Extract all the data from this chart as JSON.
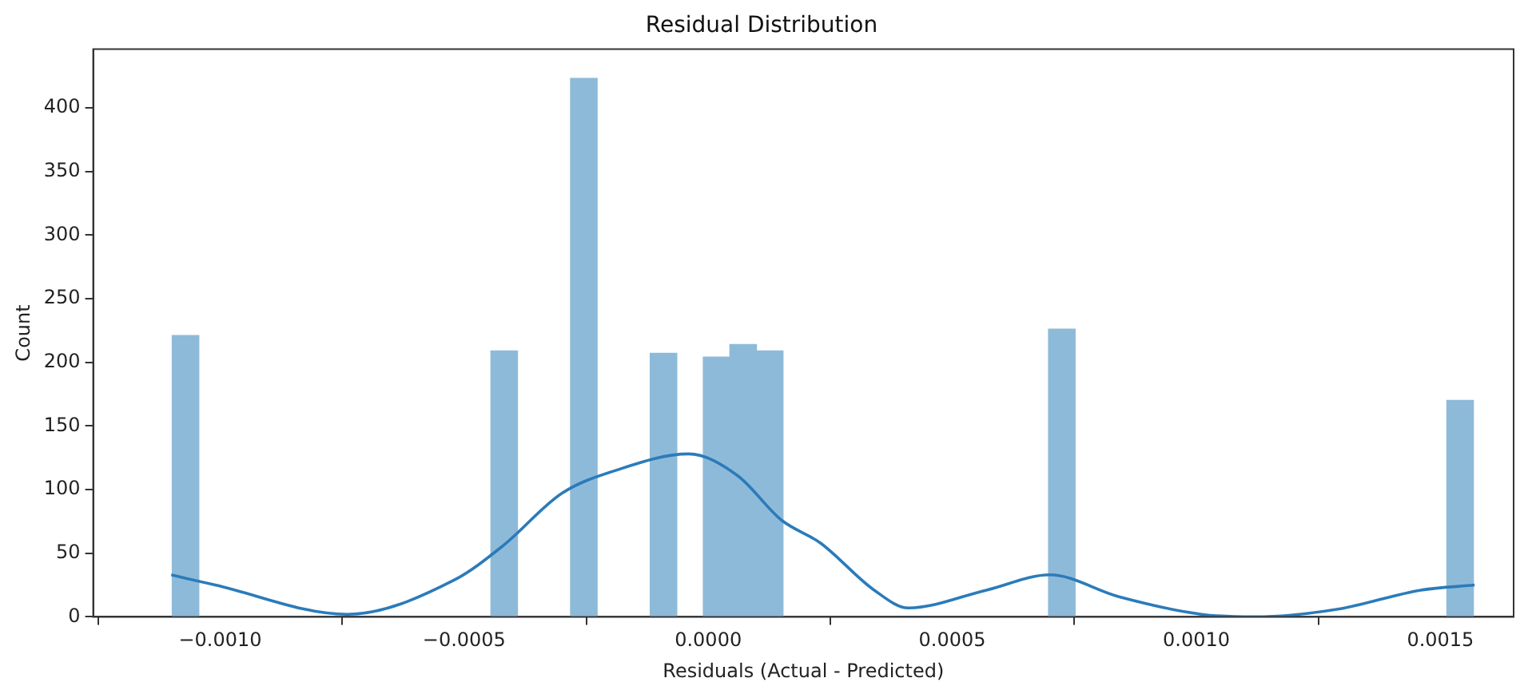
{
  "chart_data": {
    "type": "histogram",
    "title": "Residual Distribution",
    "xlabel": "Residuals (Actual - Predicted)",
    "ylabel": "Count",
    "bins": [
      -0.001098,
      -0.0010436,
      -0.0009892,
      -0.0009348,
      -0.0008804,
      -0.000826,
      -0.0007716,
      -0.0007172,
      -0.0006628,
      -0.0006084,
      -0.000554,
      -0.0004996,
      -0.0004452,
      -0.0003908,
      -0.0003364,
      -0.000282,
      -0.0002276,
      -0.0001732,
      -0.0001188,
      -6.44e-05,
      -1e-05,
      4.44e-05,
      9.88e-05,
      0.0001532,
      0.0002076,
      0.000262,
      0.0003164,
      0.0003708,
      0.0004252,
      0.0004796,
      0.000534,
      0.0005884,
      0.0006428,
      0.0006972,
      0.0007516,
      0.000806,
      0.0008604,
      0.0009148,
      0.0009692,
      0.0010236,
      0.001078,
      0.0011324,
      0.0011868,
      0.0012412,
      0.0012956,
      0.00135,
      0.0014044,
      0.0014588,
      0.0015132,
      0.0015676
    ],
    "series": [
      {
        "color": "#8ebad9",
        "values": [
          221,
          0,
          0,
          0,
          0,
          0,
          0,
          0,
          0,
          0,
          0,
          0,
          209,
          0,
          0,
          423,
          0,
          0,
          207,
          0,
          204,
          214,
          209,
          0,
          0,
          0,
          0,
          0,
          0,
          0,
          0,
          0,
          0,
          226,
          0,
          0,
          0,
          0,
          0,
          0,
          0,
          0,
          0,
          0,
          0,
          0,
          0,
          0,
          170
        ]
      },
      {
        "type": "line",
        "color": "#2b7bba",
        "x": [
          -0.0011,
          -0.00101,
          -0.00074,
          -0.00052,
          -0.00042,
          -0.0003,
          -0.00019,
          -4e-05,
          6e-05,
          0.00015,
          0.00023,
          0.00034,
          0.00041,
          0.00057,
          0.0007,
          0.00084,
          0.00101,
          0.00112,
          0.00129,
          0.00146,
          0.00157
        ],
        "values": [
          33,
          25,
          2,
          29,
          56,
          97,
          115,
          128,
          111,
          76,
          58,
          21,
          7,
          21,
          33,
          16,
          2,
          0,
          6,
          21,
          25
        ]
      }
    ],
    "xlim": [
      -0.00126,
      0.00165
    ],
    "ylim": [
      0,
      446
    ],
    "xticks": [
      {
        "value": -0.001,
        "label": "−0.0010"
      },
      {
        "value": -0.0005,
        "label": "−0.0005"
      },
      {
        "value": 0,
        "label": "0.0000"
      },
      {
        "value": 0.0005,
        "label": "0.0005"
      },
      {
        "value": 0.001,
        "label": "0.0010"
      },
      {
        "value": 0.0015,
        "label": "0.0015"
      }
    ],
    "yticks": [
      0,
      50,
      100,
      150,
      200,
      250,
      300,
      350,
      400
    ],
    "grid": false,
    "legend": false
  }
}
